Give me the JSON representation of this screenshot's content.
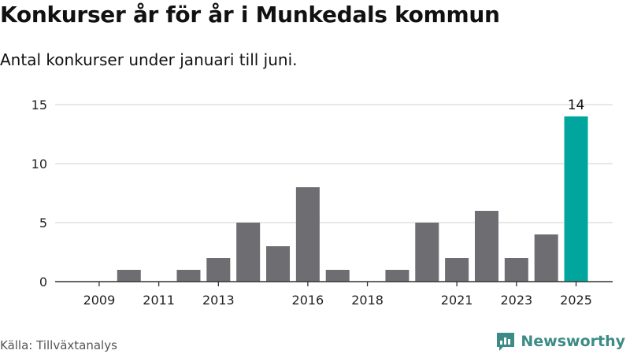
{
  "title": "Konkurser år för år i Munkedals kommun",
  "subtitle": "Antal konkurser under januari till juni.",
  "source": "Källa: Tillväxtanalys",
  "brand": "Newsworthy",
  "colors": {
    "bar": "#6e6d72",
    "highlight": "#00a59d",
    "grid": "#d9d9d9",
    "axis": "#333333",
    "brand": "#3d8b86"
  },
  "chart_data": {
    "type": "bar",
    "categories": [
      "2009",
      "2010",
      "2011",
      "2012",
      "2013",
      "2014",
      "2015",
      "2016",
      "2017",
      "2018",
      "2019",
      "2020",
      "2021",
      "2022",
      "2023",
      "2024",
      "2025"
    ],
    "x_tick_labels": [
      "2009",
      "2011",
      "2013",
      "2016",
      "2018",
      "2021",
      "2023",
      "2025"
    ],
    "values": [
      0,
      1,
      0,
      1,
      2,
      5,
      3,
      8,
      1,
      0,
      1,
      5,
      2,
      6,
      2,
      4,
      14
    ],
    "highlight_category": "2025",
    "data_labels": [
      {
        "category": "2025",
        "text": "14"
      }
    ],
    "y_ticks": [
      0,
      5,
      10,
      15
    ],
    "ylim": [
      0,
      15
    ],
    "grid": true,
    "xlabel": "",
    "ylabel": ""
  }
}
